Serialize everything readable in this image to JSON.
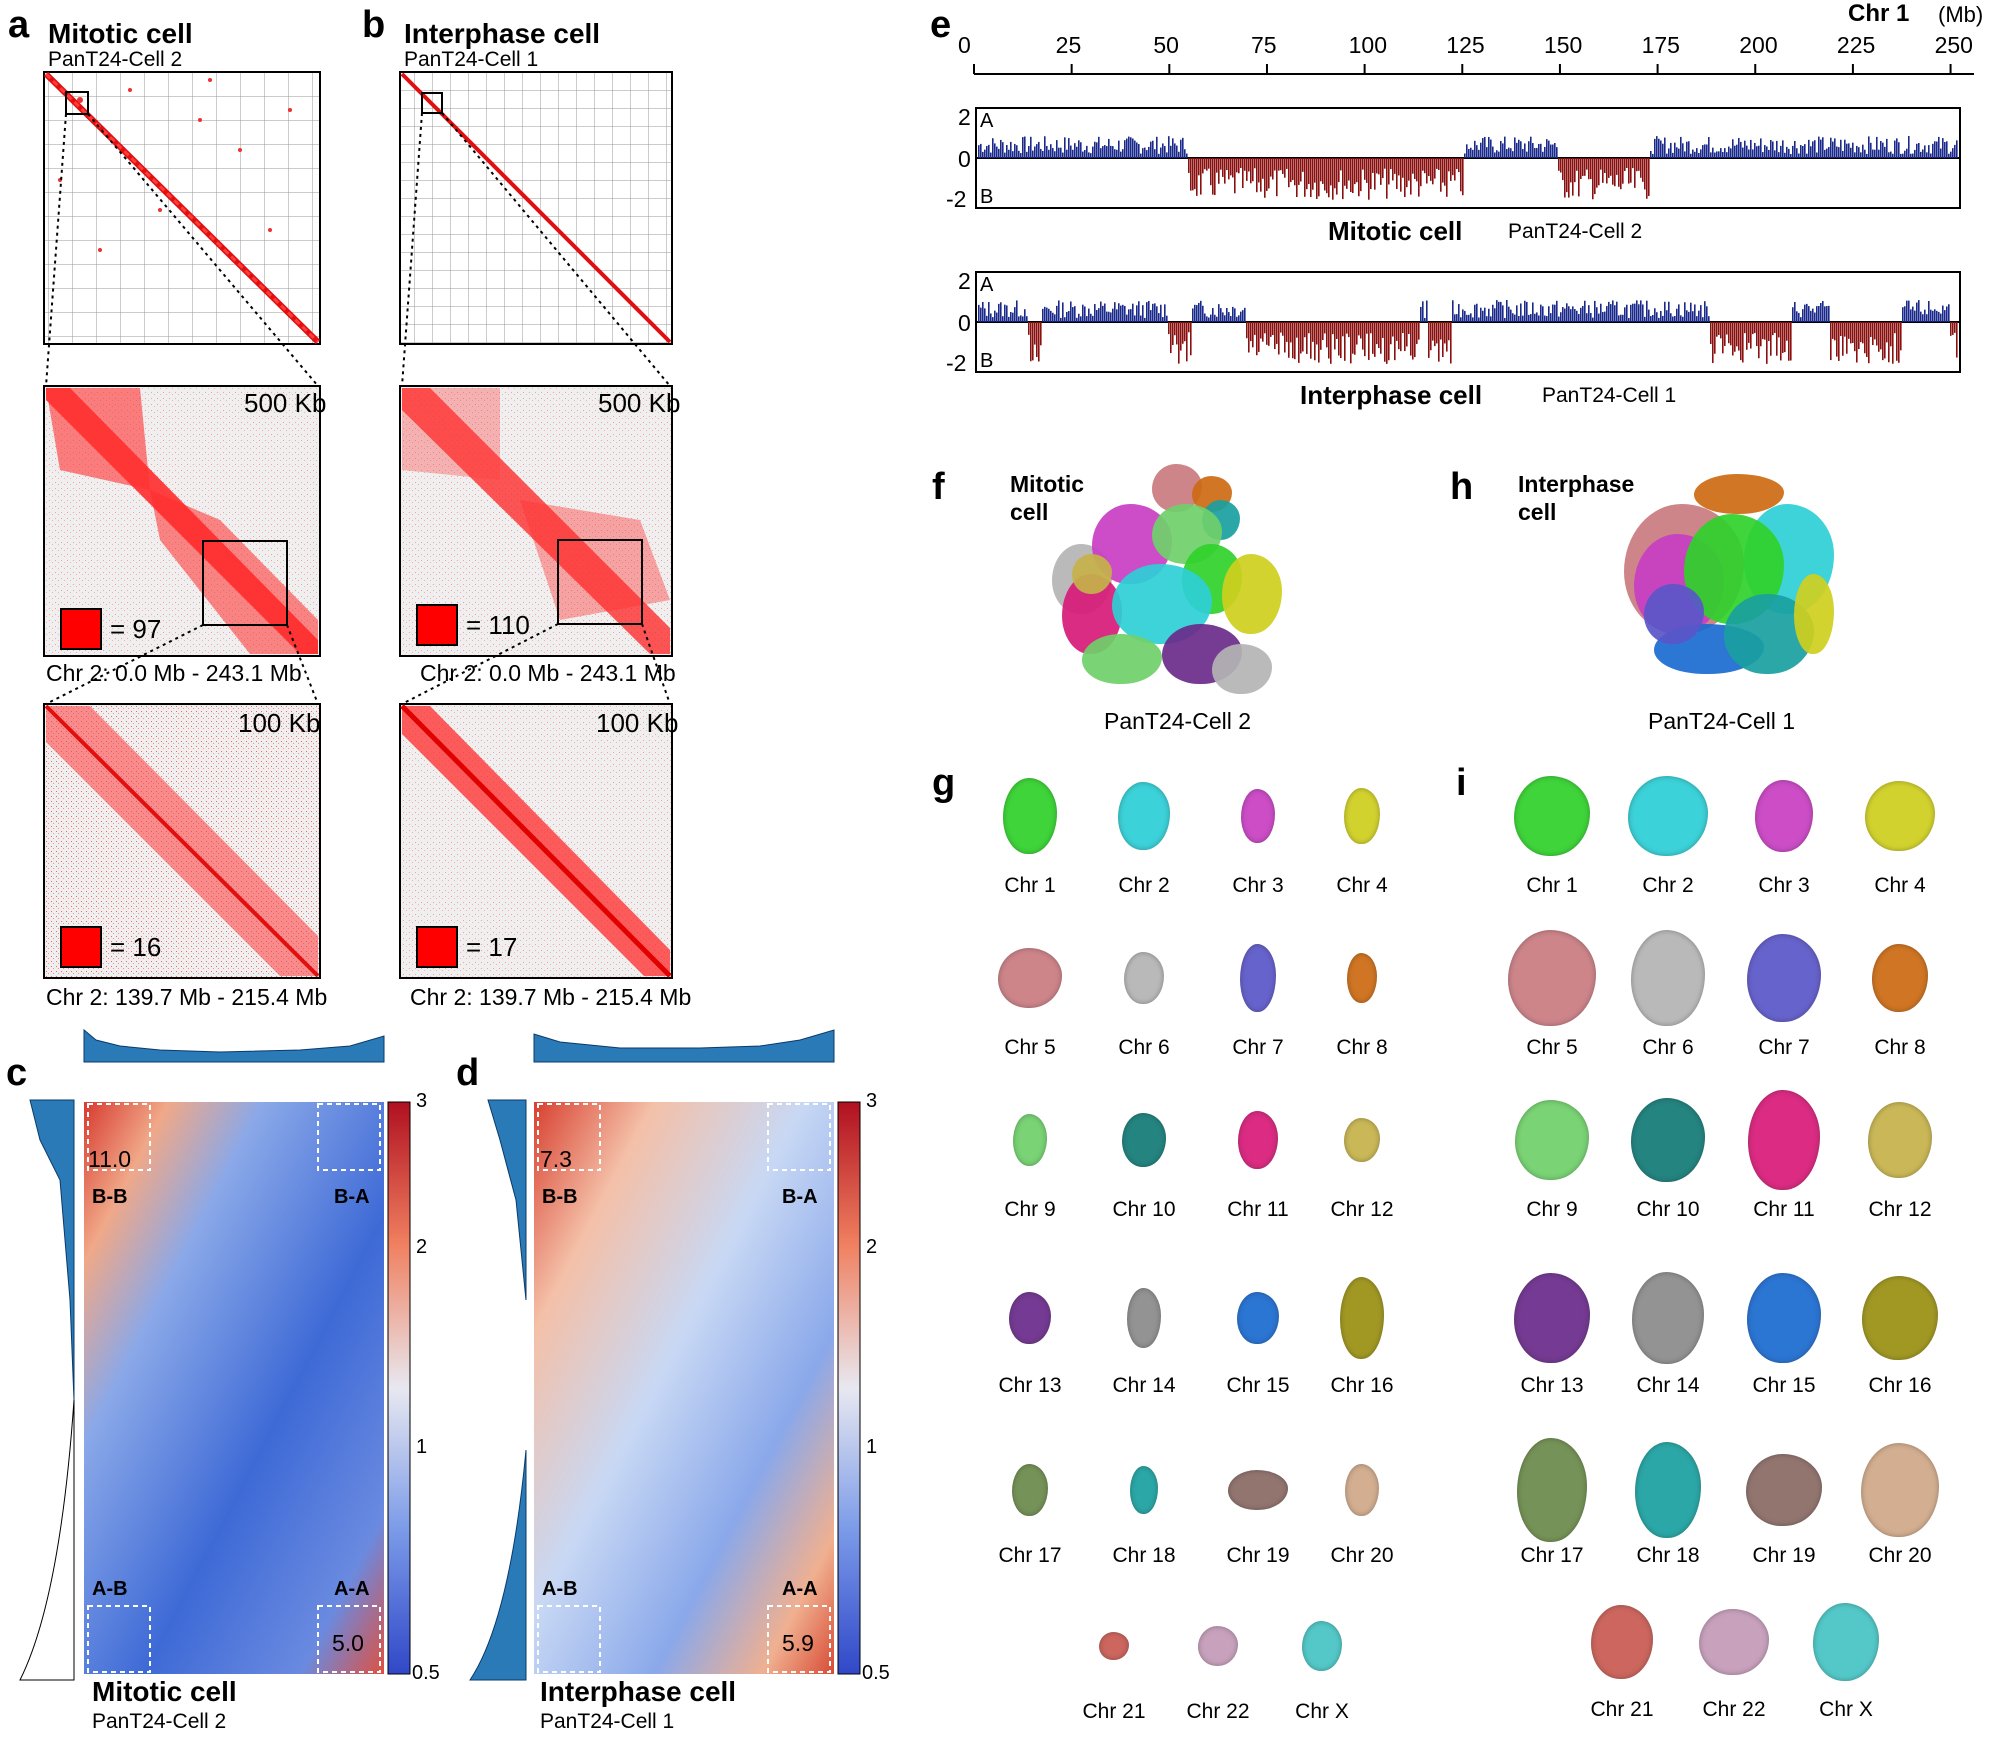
{
  "panels": {
    "a": {
      "letter": "a",
      "title": "Mitotic cell",
      "subtitle": "PanT24-Cell 2",
      "res1": "500 Kb",
      "scale1": "= 97",
      "range1": "Chr 2: 0.0 Mb - 243.1 Mb",
      "res2": "100 Kb",
      "scale2": "= 16",
      "range2": "Chr 2: 139.7 Mb - 215.4 Mb"
    },
    "b": {
      "letter": "b",
      "title": "Interphase cell",
      "subtitle": "PanT24-Cell 1",
      "res1": "500 Kb",
      "scale1": "= 110",
      "range1": "Chr 2: 0.0 Mb - 243.1 Mb",
      "res2": "100 Kb",
      "scale2": "= 17",
      "range2": "Chr 2: 139.7 Mb - 215.4 Mb"
    },
    "c": {
      "letter": "c",
      "title": "Mitotic cell",
      "subtitle": "PanT24-Cell 2",
      "bb_value": "11.0",
      "aa_value": "5.0",
      "bb": "B-B",
      "ba": "B-A",
      "ab": "A-B",
      "aa": "A-A"
    },
    "d": {
      "letter": "d",
      "title": "Interphase cell",
      "subtitle": "PanT24-Cell 1",
      "bb_value": "7.3",
      "aa_value": "5.9",
      "bb": "B-B",
      "ba": "B-A",
      "ab": "A-B",
      "aa": "A-A"
    },
    "colorbar": {
      "ticks": [
        "3",
        "2",
        "1",
        "0.5"
      ]
    },
    "e": {
      "letter": "e",
      "chr": "Chr 1",
      "unit": "(Mb)",
      "ticks": [
        "0",
        "25",
        "50",
        "75",
        "100",
        "125",
        "150",
        "175",
        "200",
        "225",
        "250"
      ],
      "track1_title": "Mitotic cell",
      "track1_sub": "PanT24-Cell 2",
      "track2_title": "Interphase cell",
      "track2_sub": "PanT24-Cell 1",
      "y_ticks": [
        "2",
        "0",
        "-2"
      ],
      "label_a": "A",
      "label_b": "B"
    },
    "f": {
      "letter": "f",
      "title1": "Mitotic",
      "title2": "cell",
      "caption": "PanT24-Cell 2"
    },
    "h": {
      "letter": "h",
      "title1": "Interphase",
      "title2": "cell",
      "caption": "PanT24-Cell 1"
    },
    "g": {
      "letter": "g"
    },
    "i": {
      "letter": "i"
    }
  },
  "chromosomes": [
    {
      "name": "Chr 1",
      "color": "#2fd12a"
    },
    {
      "name": "Chr 2",
      "color": "#2ccfd6"
    },
    {
      "name": "Chr 3",
      "color": "#c83ec2"
    },
    {
      "name": "Chr 4",
      "color": "#cfcf1e"
    },
    {
      "name": "Chr 5",
      "color": "#c97b80"
    },
    {
      "name": "Chr 6",
      "color": "#b4b4b4"
    },
    {
      "name": "Chr 7",
      "color": "#5a56c8"
    },
    {
      "name": "Chr 8",
      "color": "#cc6a12"
    },
    {
      "name": "Chr 9",
      "color": "#6fd06a"
    },
    {
      "name": "Chr 10",
      "color": "#127a76"
    },
    {
      "name": "Chr 11",
      "color": "#d81a78"
    },
    {
      "name": "Chr 12",
      "color": "#c6b24a"
    },
    {
      "name": "Chr 13",
      "color": "#6a2a8a"
    },
    {
      "name": "Chr 14",
      "color": "#8a8a8a"
    },
    {
      "name": "Chr 15",
      "color": "#1a6ad0"
    },
    {
      "name": "Chr 16",
      "color": "#9a9012"
    },
    {
      "name": "Chr 17",
      "color": "#6a8a4a"
    },
    {
      "name": "Chr 18",
      "color": "#1aa0a0"
    },
    {
      "name": "Chr 19",
      "color": "#8a6a64"
    },
    {
      "name": "Chr 20",
      "color": "#d0a888"
    },
    {
      "name": "Chr 21",
      "color": "#c85a52"
    },
    {
      "name": "Chr 22",
      "color": "#c49ab8"
    },
    {
      "name": "Chr X",
      "color": "#46c4c4"
    }
  ]
}
